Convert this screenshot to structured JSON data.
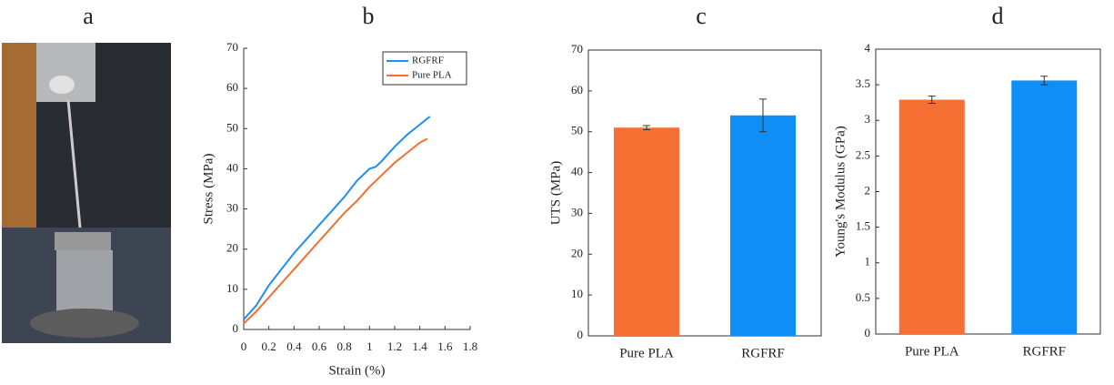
{
  "photo_label": "a",
  "chart_data": [
    {
      "panel_label": "b",
      "type": "line",
      "xlabel": "Strain (%)",
      "ylabel": "Stress (MPa)",
      "xlim": [
        0,
        1.8
      ],
      "xticks": [
        0,
        0.2,
        0.4,
        0.6,
        0.8,
        1,
        1.2,
        1.4,
        1.6,
        1.8
      ],
      "ylim": [
        0,
        70
      ],
      "yticks": [
        0,
        10,
        20,
        30,
        40,
        50,
        60,
        70
      ],
      "legend": "upper-right",
      "series": [
        {
          "name": "RGFRF",
          "color": "#1e8ff0",
          "x": [
            0,
            0.1,
            0.2,
            0.3,
            0.4,
            0.5,
            0.6,
            0.7,
            0.8,
            0.9,
            1.0,
            1.05,
            1.1,
            1.2,
            1.3,
            1.4,
            1.48
          ],
          "values": [
            2.5,
            6,
            11,
            15,
            19,
            22.5,
            26,
            29.5,
            33,
            37,
            40,
            40.5,
            42,
            45.5,
            48.5,
            51,
            53
          ]
        },
        {
          "name": "Pure PLA",
          "color": "#f36f2f",
          "x": [
            0,
            0.1,
            0.2,
            0.3,
            0.4,
            0.5,
            0.6,
            0.7,
            0.8,
            0.9,
            1.0,
            1.1,
            1.2,
            1.3,
            1.4,
            1.46
          ],
          "values": [
            1.5,
            4.5,
            8,
            11.5,
            15,
            18.5,
            22,
            25.5,
            29,
            32,
            35.5,
            38.5,
            41.5,
            44,
            46.5,
            47.5
          ]
        }
      ]
    },
    {
      "panel_label": "c",
      "type": "bar",
      "ylabel": "UTS (MPa)",
      "categories": [
        "Pure PLA",
        "RGFRF"
      ],
      "values": [
        51,
        54
      ],
      "errors": [
        0.5,
        4
      ],
      "colors": [
        "#f66f33",
        "#0f8ef5"
      ],
      "ylim": [
        0,
        70
      ],
      "yticks": [
        0,
        10,
        20,
        30,
        40,
        50,
        60,
        70
      ]
    },
    {
      "panel_label": "d",
      "type": "bar",
      "ylabel": "Young's Modulus (GPa)",
      "categories": [
        "Pure PLA",
        "RGFRF"
      ],
      "values": [
        3.29,
        3.56
      ],
      "errors": [
        0.05,
        0.06
      ],
      "colors": [
        "#f66f33",
        "#0f8ef5"
      ],
      "ylim": [
        0,
        4
      ],
      "yticks": [
        0,
        0.5,
        1,
        1.5,
        2,
        2.5,
        3,
        3.5,
        4
      ]
    }
  ]
}
